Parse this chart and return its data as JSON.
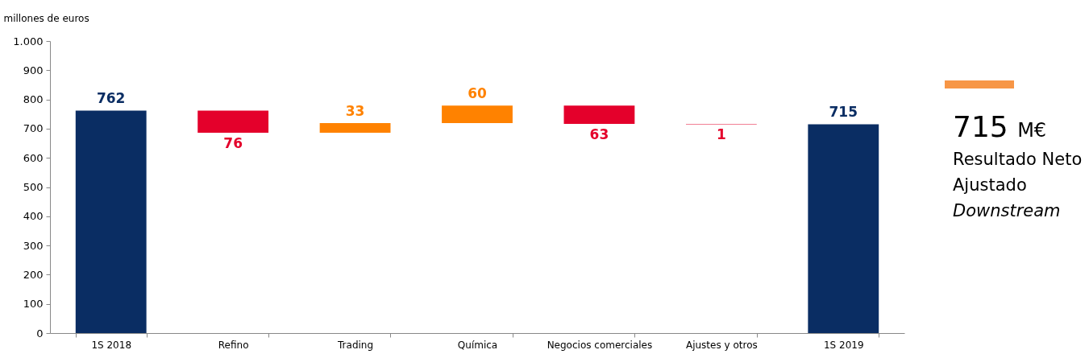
{
  "chart_data": {
    "type": "bar",
    "ylabel": "millones de euros",
    "categories": [
      "1S 2018",
      "Refino",
      "Trading",
      "Química",
      "Negocios comerciales",
      "Ajustes y otros",
      "1S 2019"
    ],
    "values": [
      762,
      -76,
      33,
      60,
      -63,
      -1,
      715
    ],
    "base": [
      0,
      762,
      686,
      719,
      779,
      716,
      0
    ],
    "colors": [
      "#0a2d63",
      "#e4002b",
      "#ff8200",
      "#ff8200",
      "#e4002b",
      "#e4002b",
      "#0a2d63"
    ],
    "value_labels": [
      "762",
      "76",
      "33",
      "60",
      "63",
      "1",
      "715"
    ],
    "ylim": [
      0,
      1000
    ],
    "yticks": [
      0,
      100,
      200,
      300,
      400,
      500,
      600,
      700,
      800,
      900,
      {
        "value": 1000,
        "label": "1.000"
      }
    ],
    "grid": false,
    "annotations": [
      "715 M€",
      "Resultado Neto Ajustado",
      "Downstream"
    ]
  }
}
